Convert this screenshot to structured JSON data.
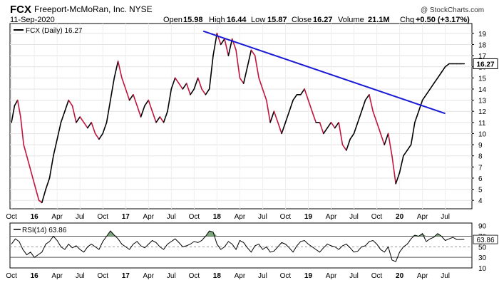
{
  "header": {
    "ticker": "FCX",
    "company": "Freeport-McMoRan, Inc.",
    "exchange": "NYSE",
    "date": "11-Sep-2020",
    "open_label": "Open",
    "open": "15.98",
    "high_label": "High",
    "high": "16.44",
    "low_label": "Low",
    "low": "15.87",
    "close_label": "Close",
    "close": "16.27",
    "volume_label": "Volume",
    "volume": "21.1M",
    "chg_label": "Chg",
    "chg": "+0.50 (+3.17%)",
    "brand": "@ StockCharts.com"
  },
  "legends": {
    "price": "FCX (Daily) 16.27",
    "rsi": "RSI(14) 63.86"
  },
  "colors": {
    "price_up": "#000000",
    "price_down": "#c0143c",
    "trendline": "#1a1ad6",
    "rsi_line": "#000000",
    "rsi_overbought_fill": "#5a8f5a",
    "last_price_box": "#ffffff"
  },
  "chart_data": [
    {
      "type": "line",
      "name": "price",
      "title": "FCX (Daily) 16.27",
      "x_unit": "month index from Oct 2015",
      "x": [
        0,
        0.4,
        0.8,
        1.2,
        1.6,
        2,
        2.4,
        2.8,
        3.2,
        3.6,
        4,
        4.5,
        5,
        5.5,
        6,
        6.5,
        7,
        7.5,
        8,
        8.5,
        9,
        9.5,
        10,
        10.5,
        11,
        11.5,
        12,
        12.5,
        13,
        13.5,
        14,
        14.5,
        15,
        15.5,
        16,
        16.5,
        17,
        17.5,
        18,
        18.5,
        19,
        19.5,
        20,
        20.5,
        21,
        21.5,
        22,
        22.5,
        23,
        23.5,
        24,
        24.5,
        25,
        25.5,
        26,
        26.5,
        27,
        27.5,
        28,
        28.5,
        29,
        29.5,
        30,
        30.5,
        31,
        31.5,
        32,
        32.5,
        33,
        33.5,
        34,
        34.5,
        35,
        35.5,
        36,
        36.5,
        37,
        37.5,
        38,
        38.5,
        39,
        39.5,
        40,
        40.5,
        41,
        41.5,
        42,
        42.5,
        43,
        43.5,
        44,
        44.5,
        45,
        45.5,
        46,
        46.5,
        47,
        47.5,
        48,
        48.5,
        49,
        49.5,
        50,
        50.5,
        51,
        51.5,
        52,
        52.5,
        53,
        53.5,
        54,
        54.5,
        55,
        55.5,
        56,
        56.5,
        57,
        57.5,
        58,
        58.5,
        59,
        59.5
      ],
      "values": [
        11,
        12.5,
        13,
        11.5,
        9,
        8,
        7,
        6,
        5,
        4,
        3.8,
        5,
        6,
        8,
        9.5,
        11,
        12,
        13,
        12.5,
        11,
        11.5,
        11,
        10.5,
        11,
        10,
        9.5,
        10,
        11,
        13,
        15,
        16.5,
        15,
        14,
        13,
        13.5,
        12.5,
        11.5,
        12.5,
        13,
        12,
        11,
        11.5,
        11,
        12,
        14,
        15,
        14.5,
        14,
        14.5,
        13.5,
        14,
        15,
        14,
        13.5,
        14,
        17,
        19,
        18,
        18.5,
        17,
        18.5,
        17.5,
        15,
        14.5,
        16,
        17.5,
        17,
        15,
        14,
        13,
        11,
        12,
        11,
        10,
        11,
        12,
        13,
        13.5,
        13.5,
        14,
        13,
        12,
        11,
        11,
        10,
        10.5,
        11,
        10.5,
        11,
        9,
        8.5,
        9.5,
        10,
        11,
        12,
        13,
        13.5,
        12,
        11,
        10,
        9,
        10,
        8,
        5.5,
        6.5,
        8,
        8.5,
        9,
        11,
        12,
        13,
        13.5,
        14,
        14.5,
        15,
        15.5,
        16,
        16.27,
        16.27,
        16.27,
        16.27,
        16.27
      ],
      "ylim": [
        3.5,
        19.5
      ],
      "ytick_labels": [
        "4",
        "5",
        "6",
        "7",
        "8",
        "9",
        "10",
        "11",
        "12",
        "13",
        "14",
        "15",
        "16",
        "17",
        "18",
        "19"
      ],
      "last_value_label": "16.27",
      "trendline": {
        "x": [
          25.2,
          57
        ],
        "y": [
          19.2,
          11.8
        ]
      },
      "xtick_labels": [
        "Oct",
        "16",
        "Apr",
        "Jul",
        "Oct",
        "17",
        "Apr",
        "Jul",
        "Oct",
        "18",
        "Apr",
        "Jul",
        "Oct",
        "19",
        "Apr",
        "Jul",
        "Oct",
        "20",
        "Apr",
        "Jul"
      ],
      "xtick_positions": [
        0,
        3,
        6,
        9,
        12,
        15,
        18,
        21,
        24,
        27,
        30,
        33,
        36,
        39,
        42,
        45,
        48,
        51,
        54,
        57
      ],
      "xlim": [
        -0.2,
        60.5
      ]
    },
    {
      "type": "line",
      "name": "rsi",
      "title": "RSI(14) 63.86",
      "x_unit": "month index from Oct 2015",
      "x": [
        0,
        0.5,
        1,
        1.5,
        2,
        2.5,
        3,
        3.5,
        4,
        4.5,
        5,
        5.5,
        6,
        6.5,
        7,
        7.5,
        8,
        8.5,
        9,
        9.5,
        10,
        10.5,
        11,
        11.5,
        12,
        12.5,
        13,
        13.5,
        14,
        14.5,
        15,
        15.5,
        16,
        16.5,
        17,
        17.5,
        18,
        18.5,
        19,
        19.5,
        20,
        20.5,
        21,
        21.5,
        22,
        22.5,
        23,
        23.5,
        24,
        24.5,
        25,
        25.5,
        26,
        26.5,
        27,
        27.5,
        28,
        28.5,
        29,
        29.5,
        30,
        30.5,
        31,
        31.5,
        32,
        32.5,
        33,
        33.5,
        34,
        34.5,
        35,
        35.5,
        36,
        36.5,
        37,
        37.5,
        38,
        38.5,
        39,
        39.5,
        40,
        40.5,
        41,
        41.5,
        42,
        42.5,
        43,
        43.5,
        44,
        44.5,
        45,
        45.5,
        46,
        46.5,
        47,
        47.5,
        48,
        48.5,
        49,
        49.5,
        50,
        50.5,
        51,
        51.5,
        52,
        52.5,
        53,
        53.5,
        54,
        54.5,
        55,
        55.5,
        56,
        56.5,
        57,
        57.5,
        58,
        58.5,
        59,
        59.5
      ],
      "values": [
        55,
        65,
        60,
        45,
        35,
        40,
        30,
        35,
        40,
        55,
        60,
        70,
        62,
        50,
        45,
        55,
        48,
        52,
        45,
        40,
        50,
        55,
        50,
        45,
        60,
        70,
        80,
        72,
        65,
        55,
        50,
        45,
        55,
        60,
        52,
        48,
        55,
        62,
        58,
        50,
        45,
        55,
        60,
        65,
        58,
        50,
        52,
        55,
        60,
        58,
        62,
        70,
        80,
        78,
        55,
        45,
        50,
        60,
        55,
        45,
        62,
        58,
        48,
        40,
        52,
        55,
        45,
        50,
        40,
        42,
        50,
        58,
        55,
        48,
        40,
        52,
        60,
        62,
        55,
        50,
        45,
        40,
        48,
        55,
        52,
        50,
        45,
        52,
        55,
        48,
        40,
        42,
        50,
        52,
        60,
        62,
        55,
        45,
        40,
        50,
        25,
        22,
        40,
        50,
        55,
        65,
        72,
        70,
        75,
        60,
        65,
        68,
        75,
        70,
        62,
        65,
        68,
        63.86,
        63.86,
        63.86
      ],
      "ylim": [
        10,
        95
      ],
      "ytick_labels": [
        "10",
        "30",
        "50",
        "70",
        "90"
      ],
      "reference_lines": [
        30,
        50,
        70
      ],
      "last_value_label": "63.86",
      "xtick_labels": [
        "Oct",
        "16",
        "Apr",
        "Jul",
        "Oct",
        "17",
        "Apr",
        "Jul",
        "Oct",
        "18",
        "Apr",
        "Jul",
        "Oct",
        "19",
        "Apr",
        "Jul",
        "Oct",
        "20",
        "Apr",
        "Jul"
      ],
      "xtick_positions": [
        0,
        3,
        6,
        9,
        12,
        15,
        18,
        21,
        24,
        27,
        30,
        33,
        36,
        39,
        42,
        45,
        48,
        51,
        54,
        57
      ],
      "xlim": [
        -0.2,
        60.5
      ]
    }
  ]
}
